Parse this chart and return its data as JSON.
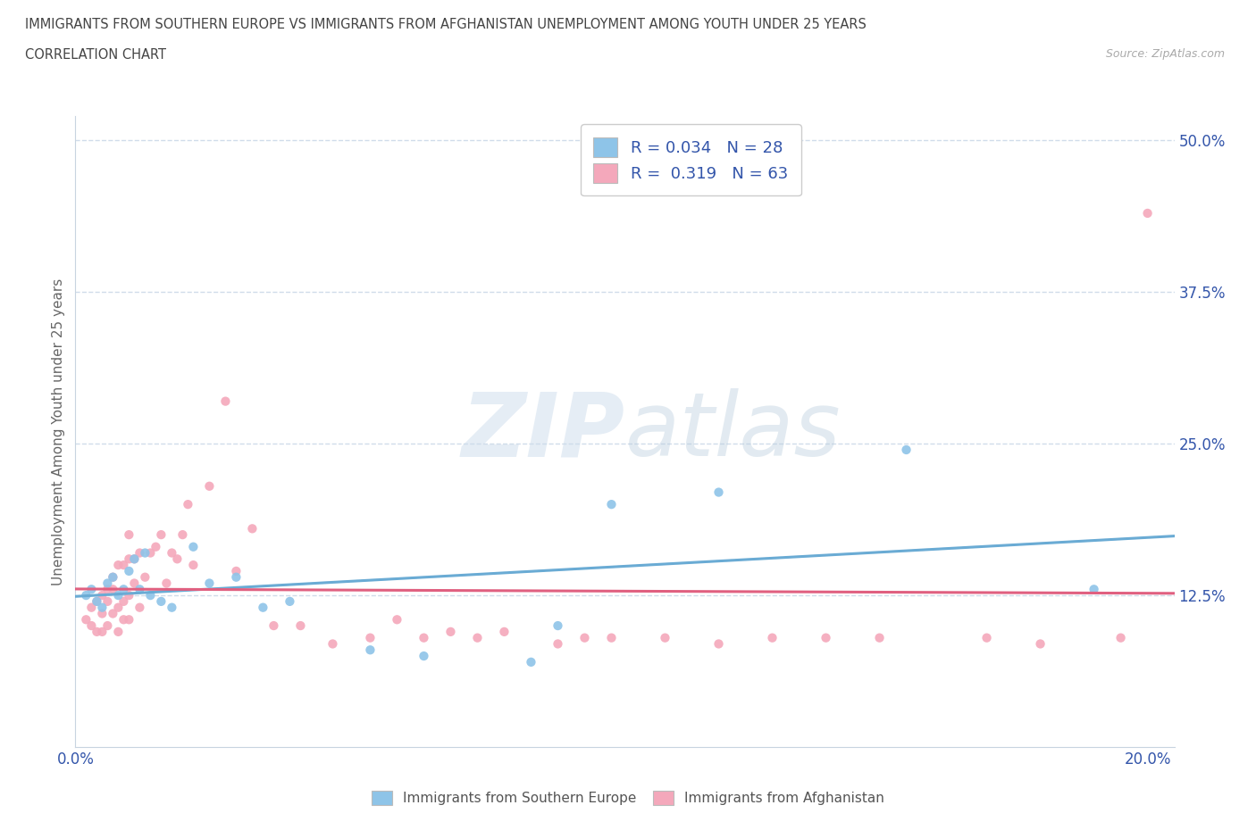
{
  "title_line1": "IMMIGRANTS FROM SOUTHERN EUROPE VS IMMIGRANTS FROM AFGHANISTAN UNEMPLOYMENT AMONG YOUTH UNDER 25 YEARS",
  "title_line2": "CORRELATION CHART",
  "source_text": "Source: ZipAtlas.com",
  "ylabel": "Unemployment Among Youth under 25 years",
  "xlim": [
    0.0,
    0.205
  ],
  "ylim": [
    0.0,
    0.52
  ],
  "yticks": [
    0.0,
    0.125,
    0.25,
    0.375,
    0.5
  ],
  "ytick_labels": [
    "",
    "12.5%",
    "25.0%",
    "37.5%",
    "50.0%"
  ],
  "color_blue": "#8ec4e8",
  "color_pink": "#f4a8bb",
  "trendline_blue_solid": "#6aabd4",
  "trendline_blue_dash": "#a0c8e8",
  "trendline_pink": "#e06080",
  "grid_color": "#d0dcea",
  "bg_color": "#ffffff",
  "legend_r1": "R = 0.034   N = 28",
  "legend_r2": "R =  0.319   N = 63",
  "legend_label1": "Immigrants from Southern Europe",
  "legend_label2": "Immigrants from Afghanistan",
  "blue_x": [
    0.002,
    0.003,
    0.004,
    0.005,
    0.006,
    0.007,
    0.008,
    0.009,
    0.01,
    0.011,
    0.012,
    0.013,
    0.014,
    0.016,
    0.018,
    0.022,
    0.025,
    0.03,
    0.035,
    0.04,
    0.055,
    0.065,
    0.085,
    0.09,
    0.1,
    0.12,
    0.155,
    0.19
  ],
  "blue_y": [
    0.125,
    0.13,
    0.12,
    0.115,
    0.135,
    0.14,
    0.125,
    0.13,
    0.145,
    0.155,
    0.13,
    0.16,
    0.125,
    0.12,
    0.115,
    0.165,
    0.135,
    0.14,
    0.115,
    0.12,
    0.08,
    0.075,
    0.07,
    0.1,
    0.2,
    0.21,
    0.245,
    0.13
  ],
  "pink_x": [
    0.002,
    0.003,
    0.003,
    0.004,
    0.004,
    0.005,
    0.005,
    0.005,
    0.006,
    0.006,
    0.006,
    0.007,
    0.007,
    0.007,
    0.008,
    0.008,
    0.008,
    0.009,
    0.009,
    0.009,
    0.01,
    0.01,
    0.01,
    0.01,
    0.011,
    0.011,
    0.012,
    0.012,
    0.013,
    0.014,
    0.015,
    0.016,
    0.017,
    0.018,
    0.019,
    0.02,
    0.021,
    0.022,
    0.025,
    0.028,
    0.03,
    0.033,
    0.037,
    0.042,
    0.048,
    0.055,
    0.06,
    0.065,
    0.07,
    0.075,
    0.08,
    0.09,
    0.095,
    0.1,
    0.11,
    0.12,
    0.13,
    0.14,
    0.15,
    0.17,
    0.18,
    0.195,
    0.2
  ],
  "pink_y": [
    0.105,
    0.115,
    0.1,
    0.095,
    0.12,
    0.11,
    0.095,
    0.125,
    0.12,
    0.1,
    0.13,
    0.11,
    0.13,
    0.14,
    0.095,
    0.115,
    0.15,
    0.105,
    0.12,
    0.15,
    0.105,
    0.125,
    0.155,
    0.175,
    0.135,
    0.155,
    0.115,
    0.16,
    0.14,
    0.16,
    0.165,
    0.175,
    0.135,
    0.16,
    0.155,
    0.175,
    0.2,
    0.15,
    0.215,
    0.285,
    0.145,
    0.18,
    0.1,
    0.1,
    0.085,
    0.09,
    0.105,
    0.09,
    0.095,
    0.09,
    0.095,
    0.085,
    0.09,
    0.09,
    0.09,
    0.085,
    0.09,
    0.09,
    0.09,
    0.09,
    0.085,
    0.09,
    0.44
  ],
  "blue_trend_x": [
    0.0,
    0.205
  ],
  "blue_trend_y_intercept": 0.13,
  "blue_trend_slope": 0.01,
  "pink_trend_x": [
    0.0,
    0.205
  ],
  "pink_trend_y_start": 0.095,
  "pink_trend_slope": 0.82
}
